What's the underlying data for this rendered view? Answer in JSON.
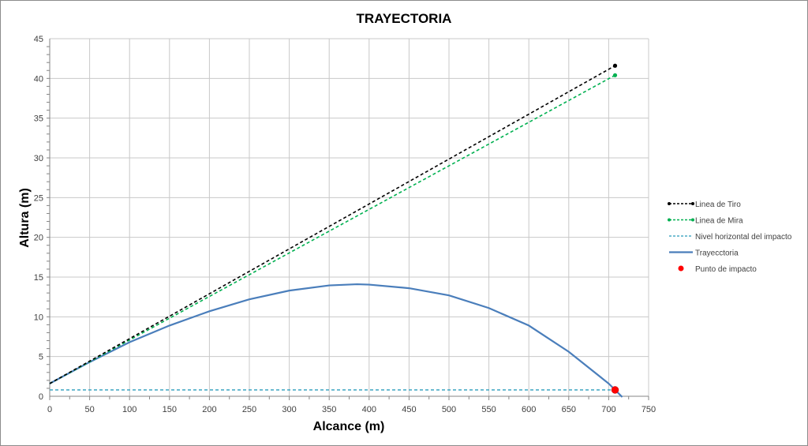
{
  "chart_data": {
    "type": "line",
    "title": "TRAYECTORIA",
    "xlabel": "Alcance (m)",
    "ylabel": "Altura (m)",
    "xlim": [
      0,
      750
    ],
    "ylim": [
      0,
      45
    ],
    "xticks": [
      0,
      50,
      100,
      150,
      200,
      250,
      300,
      350,
      400,
      450,
      500,
      550,
      600,
      650,
      700,
      750
    ],
    "yticks": [
      0,
      5,
      10,
      15,
      20,
      25,
      30,
      35,
      40,
      45
    ],
    "grid": true,
    "legend_position": "right",
    "series": [
      {
        "name": "Linea de Tiro",
        "style": "dashed-markers",
        "color": "#000000",
        "x": [
          0,
          708
        ],
        "y": [
          1.6,
          41.6
        ]
      },
      {
        "name": "Linea de Mira",
        "style": "dashed-markers",
        "color": "#00b050",
        "x": [
          0,
          708
        ],
        "y": [
          1.6,
          40.4
        ]
      },
      {
        "name": "Nivel horizontal del impacto",
        "style": "dashed",
        "color": "#4bacc6",
        "x": [
          0,
          708
        ],
        "y": [
          0.8,
          0.8
        ]
      },
      {
        "name": "Trayecctoria",
        "style": "solid",
        "color": "#4a7ebb",
        "x": [
          0,
          50,
          100,
          150,
          200,
          250,
          300,
          350,
          385,
          400,
          450,
          500,
          550,
          600,
          650,
          700,
          717
        ],
        "y": [
          1.6,
          4.3,
          6.8,
          8.9,
          10.7,
          12.2,
          13.3,
          13.95,
          14.1,
          14.05,
          13.6,
          12.7,
          11.1,
          8.9,
          5.6,
          1.6,
          -0.1
        ]
      },
      {
        "name": "Punto de impacto",
        "style": "point",
        "color": "#ff0000",
        "x": [
          708
        ],
        "y": [
          0.8
        ]
      }
    ]
  }
}
